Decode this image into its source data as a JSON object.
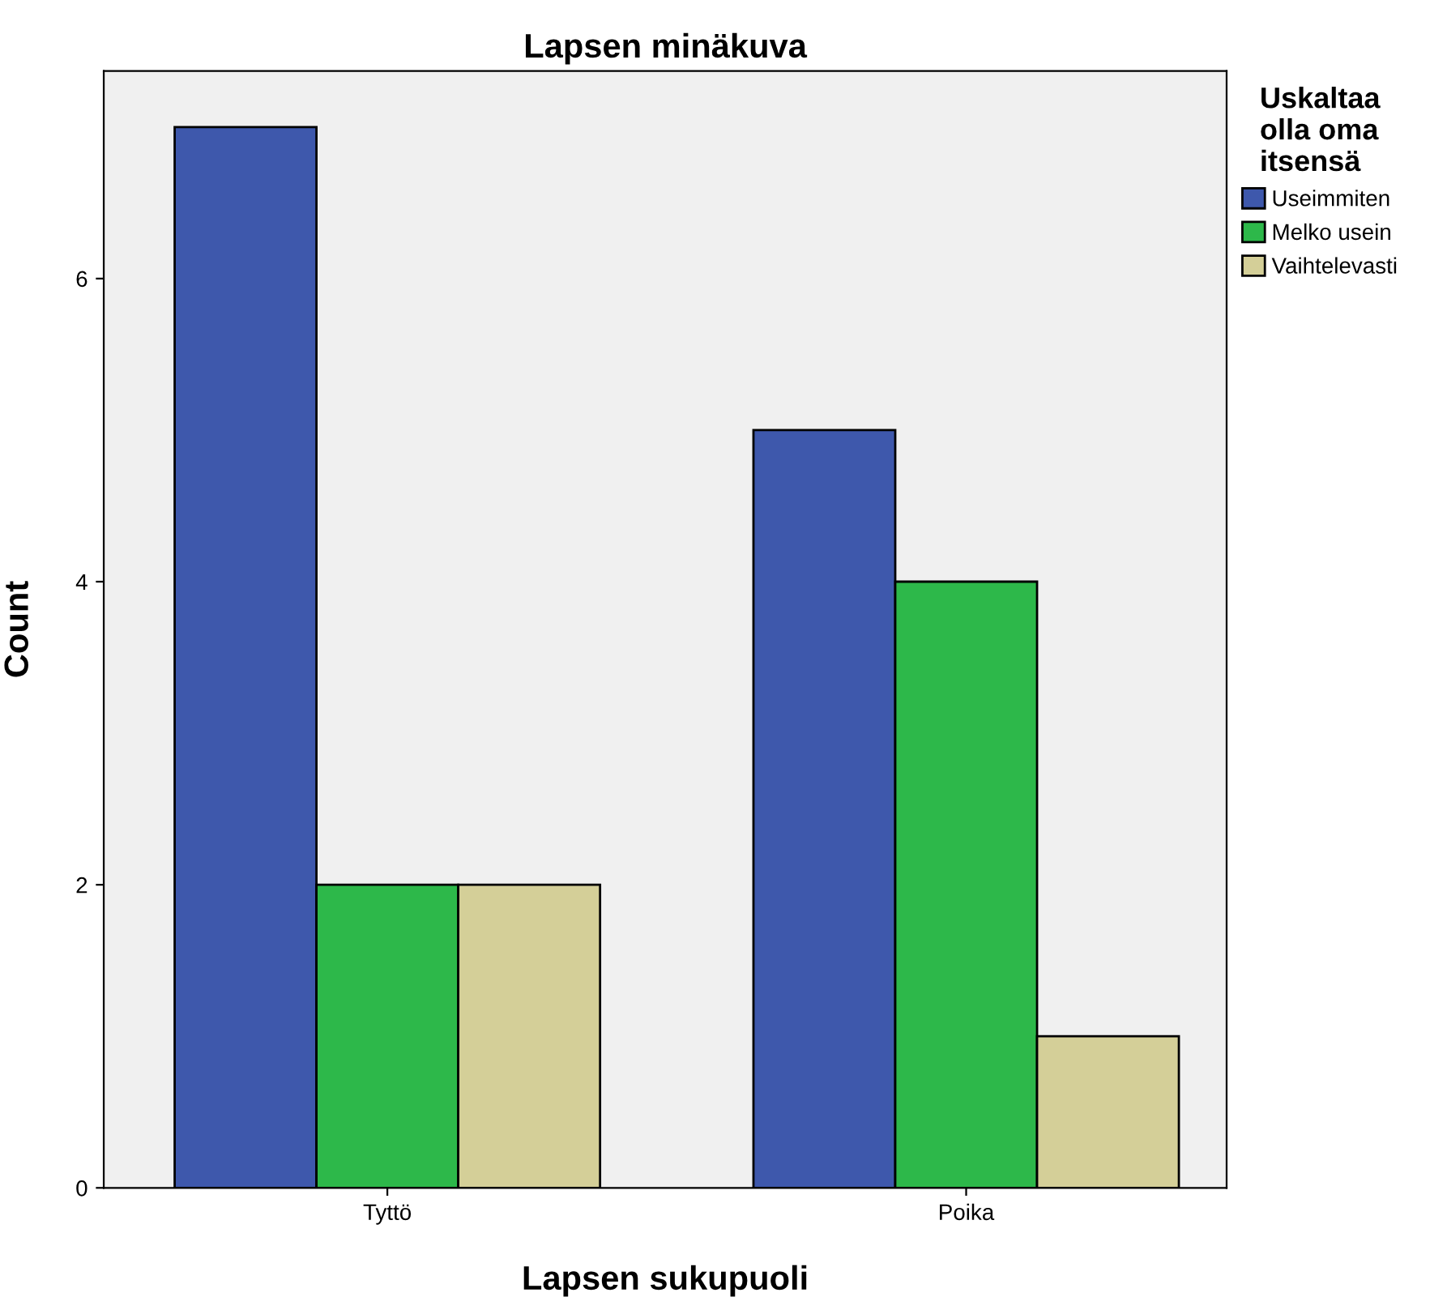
{
  "chart_data": {
    "type": "bar",
    "title": "Lapsen minäkuva",
    "xlabel": "Lapsen sukupuoli",
    "ylabel": "Count",
    "legend_title": "Uskaltaa\nolla oma\nitsensä",
    "categories": [
      "Tyttö",
      "Poika"
    ],
    "series": [
      {
        "name": "Useimmiten",
        "color": "#3e58ac",
        "values": [
          7,
          5
        ]
      },
      {
        "name": "Melko usein",
        "color": "#2db84a",
        "values": [
          2,
          4
        ]
      },
      {
        "name": "Vaihtelevasti",
        "color": "#d4cf98",
        "values": [
          2,
          1
        ]
      }
    ],
    "ylim": [
      0,
      7.37
    ],
    "yticks": [
      0,
      2,
      4,
      6
    ],
    "grid": false,
    "legend": "right"
  }
}
